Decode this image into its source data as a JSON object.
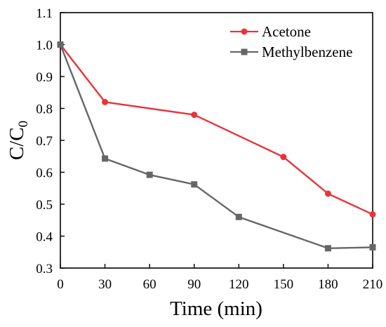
{
  "chart_data": {
    "type": "line",
    "x": [
      0,
      30,
      60,
      90,
      120,
      150,
      180,
      210
    ],
    "series": [
      {
        "name": "Acetone",
        "color": "#e8343a",
        "marker": "circle",
        "x": [
          0,
          30,
          90,
          150,
          180,
          210
        ],
        "values": [
          1.0,
          0.82,
          0.78,
          0.648,
          0.533,
          0.468
        ]
      },
      {
        "name": "Methylbenzene",
        "color": "#666666",
        "marker": "square",
        "x": [
          0,
          30,
          60,
          90,
          120,
          180,
          210
        ],
        "values": [
          1.0,
          0.643,
          0.592,
          0.562,
          0.46,
          0.362,
          0.365
        ]
      }
    ],
    "xlabel": "Time (min)",
    "ylabel": "C/C0",
    "ylabel_main": "C/C",
    "ylabel_sub": "0",
    "xlim": [
      0,
      210
    ],
    "ylim": [
      0.3,
      1.1
    ],
    "x_ticks": [
      "0",
      "30",
      "60",
      "90",
      "120",
      "150",
      "180",
      "210"
    ],
    "y_ticks": [
      "0.3",
      "0.4",
      "0.5",
      "0.6",
      "0.7",
      "0.8",
      "0.9",
      "1.0",
      "1.1"
    ],
    "grid": false,
    "legend_position": "top-right"
  }
}
